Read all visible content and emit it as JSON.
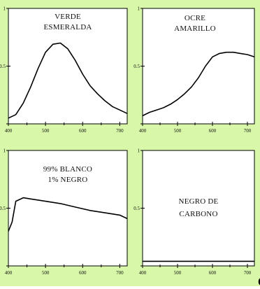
{
  "corner_glyph": "e",
  "colors": {
    "background": "#d8f7a8",
    "plot_face": "#ffffff",
    "line": "#000000"
  },
  "chart_data": [
    {
      "type": "line",
      "title_lines": [
        "VERDE",
        "ESMERALDA"
      ],
      "xlim": [
        400,
        720
      ],
      "ylim": [
        0,
        1
      ],
      "x_ticks": [
        "400",
        "500",
        "600",
        "700"
      ],
      "y_ticks": [
        "0.5",
        "1"
      ],
      "y_tick_values": [
        0,
        0.5,
        1
      ],
      "series": [
        {
          "x": [
            400,
            420,
            440,
            460,
            480,
            500,
            520,
            540,
            560,
            580,
            600,
            620,
            640,
            660,
            680,
            700,
            720
          ],
          "y": [
            0.05,
            0.08,
            0.18,
            0.32,
            0.48,
            0.62,
            0.69,
            0.7,
            0.65,
            0.55,
            0.43,
            0.33,
            0.26,
            0.2,
            0.15,
            0.12,
            0.09
          ]
        }
      ]
    },
    {
      "type": "line",
      "title_lines": [
        "OCRE",
        "AMARILLO"
      ],
      "xlim": [
        400,
        720
      ],
      "ylim": [
        0,
        1
      ],
      "x_ticks": [
        "400",
        "500",
        "600",
        "700"
      ],
      "y_ticks": [
        "0.5",
        "1"
      ],
      "y_tick_values": [
        0,
        0.5,
        1
      ],
      "series": [
        {
          "x": [
            400,
            420,
            440,
            460,
            480,
            500,
            520,
            540,
            560,
            580,
            600,
            620,
            640,
            660,
            680,
            700,
            720
          ],
          "y": [
            0.07,
            0.1,
            0.12,
            0.14,
            0.17,
            0.21,
            0.26,
            0.32,
            0.4,
            0.5,
            0.58,
            0.61,
            0.62,
            0.62,
            0.61,
            0.6,
            0.58
          ]
        }
      ]
    },
    {
      "type": "line",
      "title_lines": [
        "99% BLANCO",
        "1% NEGRO"
      ],
      "xlim": [
        400,
        720
      ],
      "ylim": [
        0,
        1
      ],
      "x_ticks": [
        "400",
        "500",
        "600",
        "700"
      ],
      "y_ticks": [
        "0.5",
        "1"
      ],
      "y_tick_values": [
        0,
        0.5,
        1
      ],
      "series": [
        {
          "x": [
            400,
            410,
            420,
            440,
            460,
            480,
            500,
            540,
            580,
            620,
            660,
            700,
            720
          ],
          "y": [
            0.3,
            0.38,
            0.56,
            0.59,
            0.58,
            0.57,
            0.56,
            0.54,
            0.51,
            0.48,
            0.46,
            0.44,
            0.41
          ]
        }
      ]
    },
    {
      "type": "line",
      "title_lines": [
        "NEGRO DE",
        "CARBONO"
      ],
      "xlim": [
        400,
        720
      ],
      "ylim": [
        0,
        1
      ],
      "x_ticks": [
        "400",
        "500",
        "600",
        "700"
      ],
      "y_ticks": [
        "0.5",
        "1"
      ],
      "y_tick_values": [
        0,
        0.5,
        1
      ],
      "series": [
        {
          "x": [
            400,
            500,
            600,
            720
          ],
          "y": [
            0.04,
            0.04,
            0.04,
            0.04
          ]
        }
      ]
    }
  ]
}
